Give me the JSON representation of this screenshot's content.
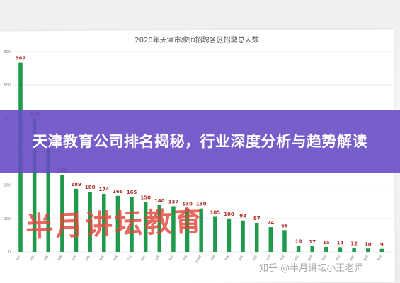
{
  "overlay": {
    "headline": "天津教育公司排名揭秘，行业深度分析与趋势解读"
  },
  "watermark": {
    "text": "半月讲坛教育",
    "source": "知乎 @半月讲坛小王老师"
  },
  "colors": {
    "bar": "#1f9a4b",
    "overlay": "#684cc4",
    "watermark": "#e4463c"
  },
  "chart_data": {
    "type": "bar",
    "title": "2020年天津市教师招聘各区招聘总人数",
    "categories": [
      "和平",
      "河东",
      "河西",
      "津南",
      "河西",
      "西青",
      "静海",
      "武清",
      "宁河",
      "蓟州",
      "北辰",
      "和平",
      "东丽",
      "生态城",
      "东丽",
      "滨海",
      "宝坻",
      "河北",
      "红桥",
      "其他",
      "其他",
      "其他",
      "其他",
      "其他",
      "其他",
      "其他",
      "其他"
    ],
    "values": [
      567,
      400,
      309,
      230,
      189,
      180,
      174,
      168,
      165,
      150,
      140,
      137,
      130,
      130,
      105,
      100,
      94,
      87,
      74,
      65,
      18,
      17,
      15,
      14,
      12,
      10,
      9
    ],
    "yticks": [
      0,
      100,
      200,
      300,
      400,
      500,
      600
    ],
    "ylim": [
      0,
      600
    ],
    "grid": true
  }
}
